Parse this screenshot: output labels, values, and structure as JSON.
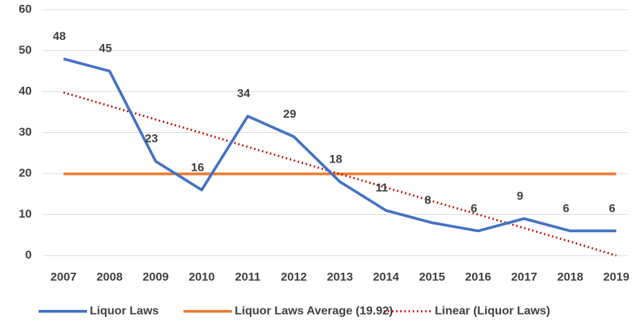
{
  "chart_data": {
    "type": "line",
    "categories": [
      "2007",
      "2008",
      "2009",
      "2010",
      "2011",
      "2012",
      "2013",
      "2014",
      "2015",
      "2016",
      "2017",
      "2018",
      "2019"
    ],
    "series": [
      {
        "name": "Liquor Laws",
        "color": "#4472c4",
        "style": "solid",
        "data_labels": true,
        "values": [
          48,
          45,
          23,
          16,
          34,
          29,
          18,
          11,
          8,
          6,
          9,
          6,
          6
        ]
      },
      {
        "name": "Liquor Laws Average (19.92)",
        "color": "#ed7d31",
        "style": "solid",
        "values": [
          19.92,
          19.92,
          19.92,
          19.92,
          19.92,
          19.92,
          19.92,
          19.92,
          19.92,
          19.92,
          19.92,
          19.92,
          19.92
        ]
      },
      {
        "name": "Linear (Liquor Laws)",
        "color": "#c00000",
        "style": "dotted",
        "values": [
          39.8,
          36.5,
          33.2,
          29.9,
          26.5,
          23.2,
          19.9,
          16.6,
          13.3,
          10.0,
          6.7,
          3.4,
          0.0
        ]
      }
    ],
    "ylim": [
      0,
      60
    ],
    "yticks": [
      0,
      10,
      20,
      30,
      40,
      50,
      60
    ],
    "grid": true,
    "legend": "bottom"
  }
}
